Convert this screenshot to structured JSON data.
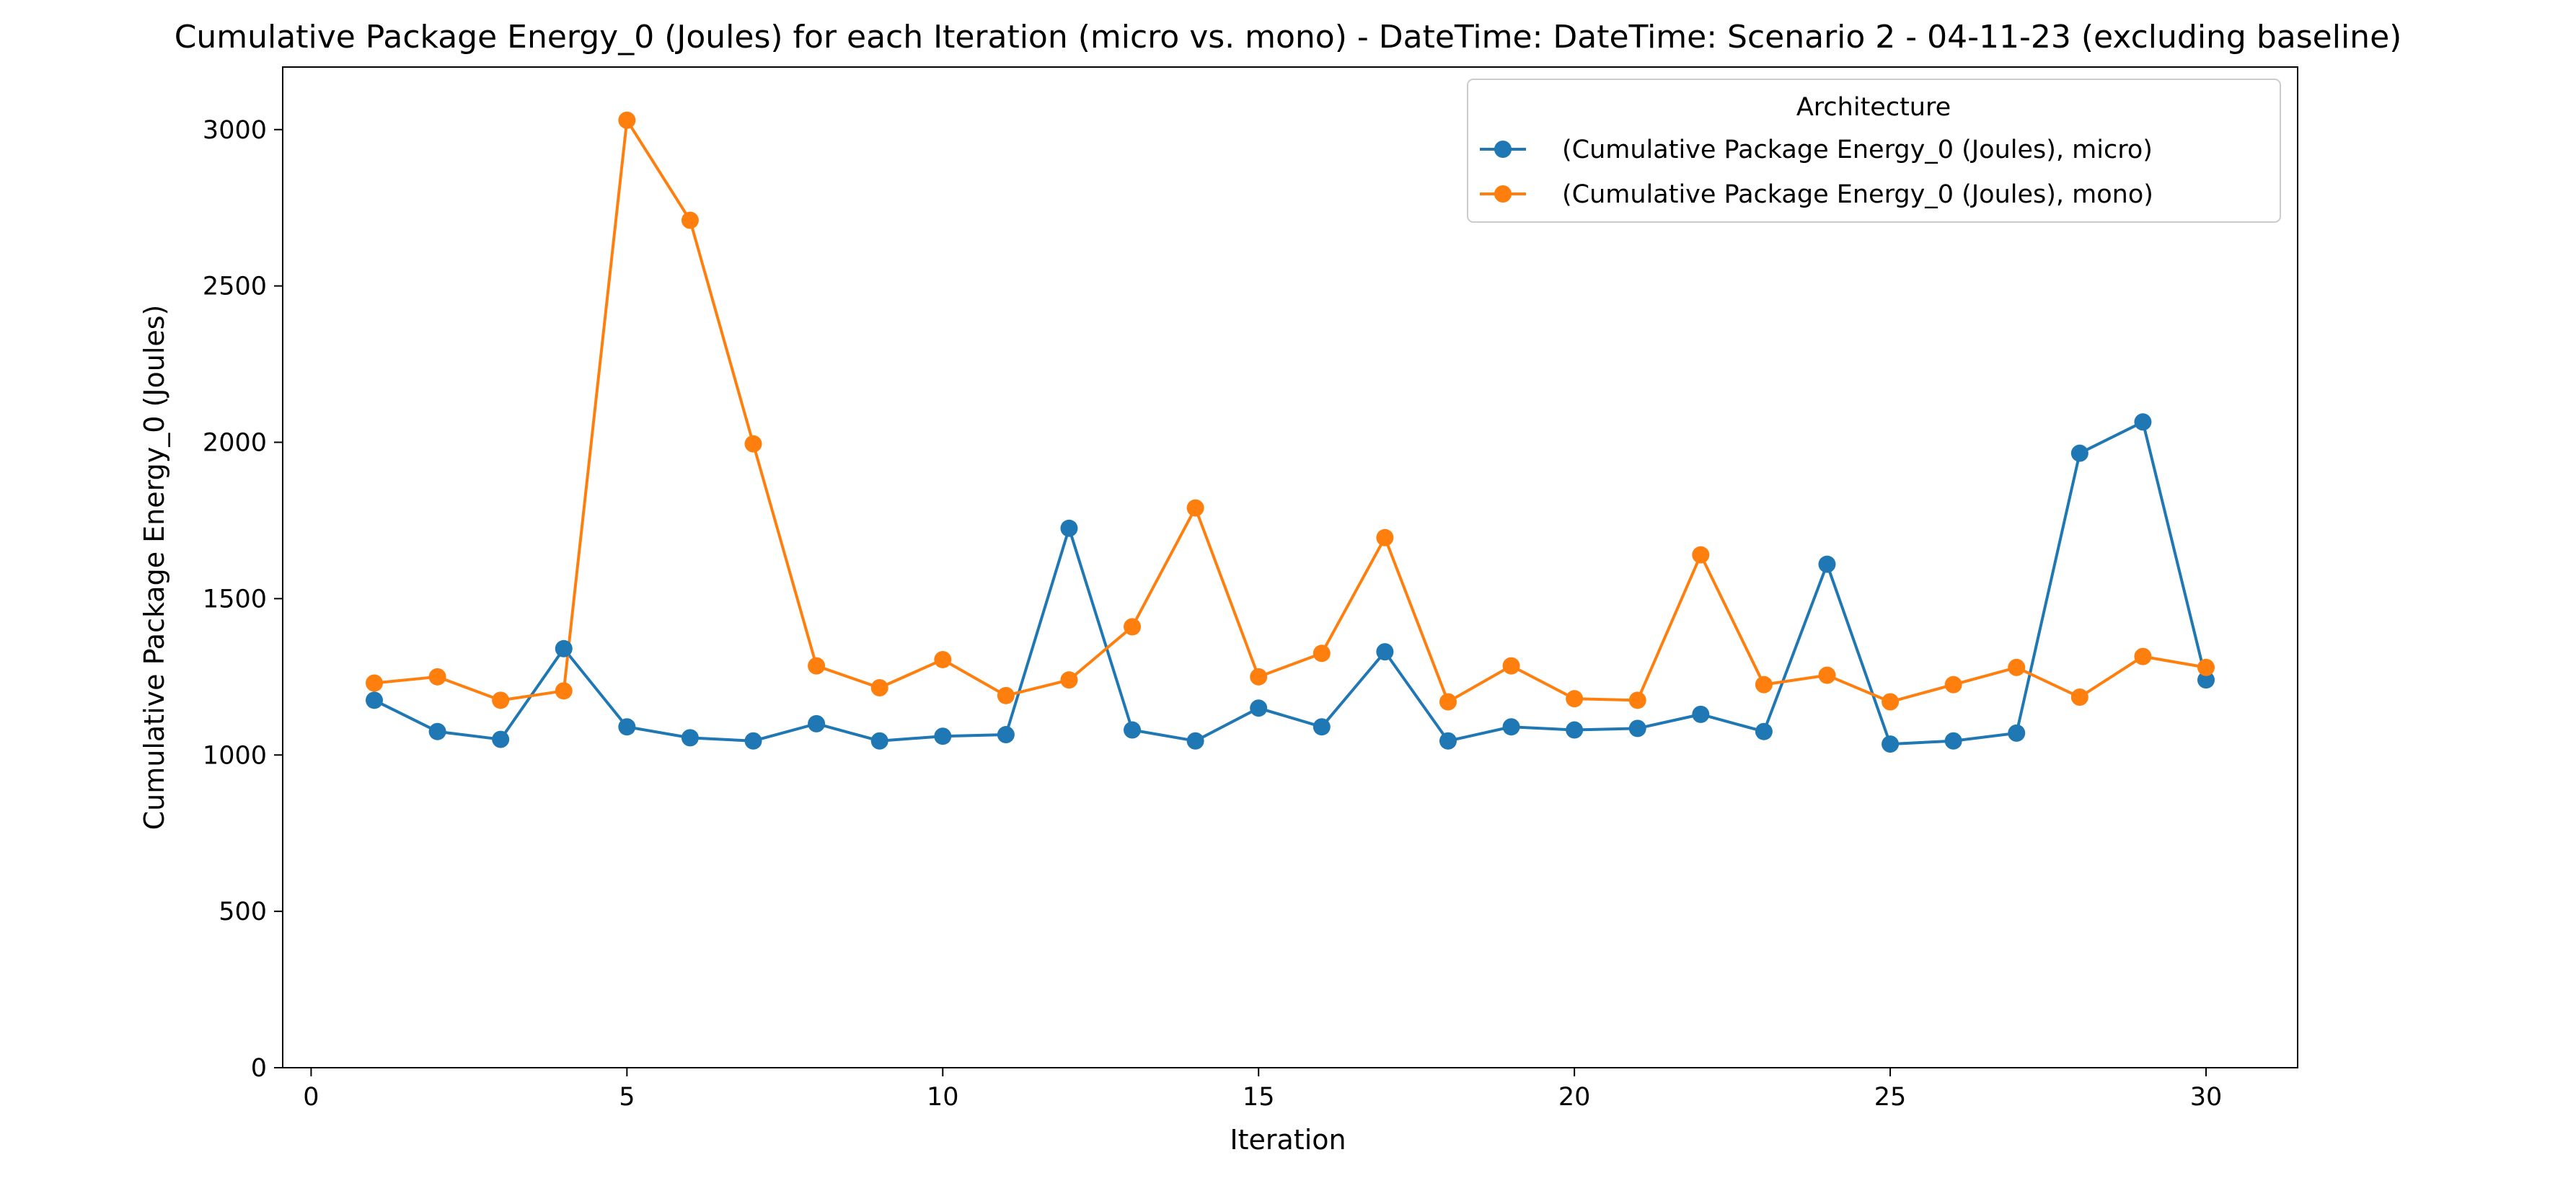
{
  "chart_data": {
    "type": "line",
    "title": "Cumulative Package Energy_0 (Joules) for each Iteration (micro vs. mono) - DateTime: DateTime: Scenario 2 - 04-11-23 (excluding baseline)",
    "xlabel": "Iteration",
    "ylabel": "Cumulative Package Energy_0 (Joules)",
    "xlim": [
      -0.45,
      31.45
    ],
    "ylim": [
      0,
      3200
    ],
    "xticks": [
      0,
      5,
      10,
      15,
      20,
      25,
      30
    ],
    "yticks": [
      0,
      500,
      1000,
      1500,
      2000,
      2500,
      3000
    ],
    "grid": false,
    "legend": {
      "title": "Architecture",
      "placement": "top-right"
    },
    "x": [
      1,
      2,
      3,
      4,
      5,
      6,
      7,
      8,
      9,
      10,
      11,
      12,
      13,
      14,
      15,
      16,
      17,
      18,
      19,
      20,
      21,
      22,
      23,
      24,
      25,
      26,
      27,
      28,
      29,
      30
    ],
    "series": [
      {
        "name": "(Cumulative Package Energy_0 (Joules), micro)",
        "color": "#1f77b4",
        "values": [
          1175,
          1075,
          1050,
          1340,
          1090,
          1055,
          1045,
          1100,
          1045,
          1060,
          1065,
          1725,
          1080,
          1045,
          1150,
          1090,
          1330,
          1045,
          1090,
          1080,
          1085,
          1130,
          1075,
          1610,
          1035,
          1045,
          1070,
          1965,
          2065,
          1240
        ]
      },
      {
        "name": "(Cumulative Package Energy_0 (Joules), mono)",
        "color": "#ff7f0e",
        "values": [
          1230,
          1250,
          1175,
          1205,
          3030,
          2710,
          1995,
          1285,
          1215,
          1305,
          1190,
          1240,
          1410,
          1790,
          1250,
          1325,
          1695,
          1170,
          1285,
          1180,
          1175,
          1640,
          1225,
          1255,
          1170,
          1225,
          1280,
          1185,
          1315,
          1280
        ]
      }
    ]
  }
}
